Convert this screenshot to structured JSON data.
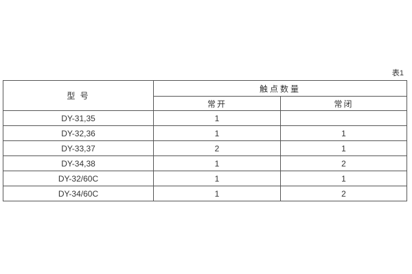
{
  "caption": "表1",
  "theme": {
    "background_color": "#ffffff",
    "border_color": "#555555",
    "text_color": "#333333"
  },
  "table": {
    "model_header": "型 号",
    "group_header": "触点数量",
    "normally_open_header": "常开",
    "normally_closed_header": "常闭",
    "rows": [
      {
        "model": "DY-31,35",
        "normally_open": "1",
        "normally_closed": ""
      },
      {
        "model": "DY-32,36",
        "normally_open": "1",
        "normally_closed": "1"
      },
      {
        "model": "DY-33,37",
        "normally_open": "2",
        "normally_closed": "1"
      },
      {
        "model": "DY-34,38",
        "normally_open": "1",
        "normally_closed": "2"
      },
      {
        "model": "DY-32/60C",
        "normally_open": "1",
        "normally_closed": "1"
      },
      {
        "model": "DY-34/60C",
        "normally_open": "1",
        "normally_closed": "2"
      }
    ]
  }
}
